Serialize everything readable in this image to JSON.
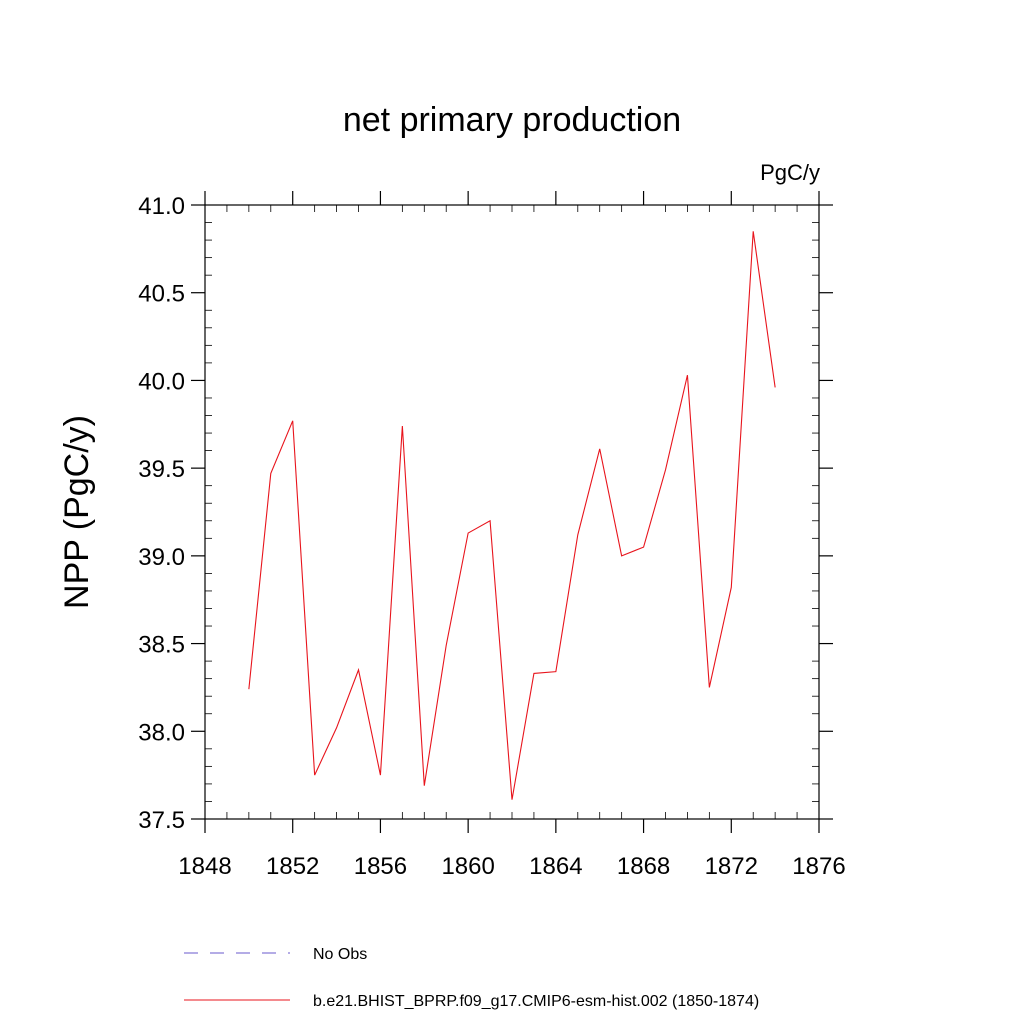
{
  "chart_data": {
    "type": "line",
    "title": "net primary production",
    "units": "PgC/y",
    "ylabel": "NPP  (PgC/y)",
    "xlabel": "",
    "xlim": [
      1848,
      1876
    ],
    "ylim": [
      37.5,
      41.0
    ],
    "x_ticks": [
      1848,
      1852,
      1856,
      1860,
      1864,
      1868,
      1872,
      1876
    ],
    "y_ticks": [
      "37.5",
      "38.0",
      "38.5",
      "39.0",
      "39.5",
      "40.0",
      "40.5",
      "41.0"
    ],
    "grid": false,
    "series": [
      {
        "name": "b.e21.BHIST_BPRP.f09_g17.CMIP6-esm-hist.002 (1850-1874)",
        "color": "#e8141c",
        "dash": "solid",
        "x": [
          1850,
          1851,
          1852,
          1853,
          1854,
          1855,
          1856,
          1857,
          1858,
          1859,
          1860,
          1861,
          1862,
          1863,
          1864,
          1865,
          1866,
          1867,
          1868,
          1869,
          1870,
          1871,
          1872,
          1873,
          1874
        ],
        "y": [
          38.24,
          39.47,
          39.77,
          37.75,
          38.02,
          38.35,
          37.75,
          39.74,
          37.69,
          38.49,
          39.13,
          39.2,
          37.61,
          38.33,
          38.34,
          39.12,
          39.61,
          39.0,
          39.05,
          39.49,
          40.03,
          38.25,
          38.82,
          40.85,
          39.96
        ]
      }
    ],
    "legend": {
      "placement": "bottom",
      "entries": [
        {
          "label": "No Obs",
          "color": "#6a5acd",
          "dash": "dashed"
        },
        {
          "label": "b.e21.BHIST_BPRP.f09_g17.CMIP6-esm-hist.002 (1850-1874)",
          "color": "#e8141c",
          "dash": "solid"
        }
      ]
    }
  }
}
